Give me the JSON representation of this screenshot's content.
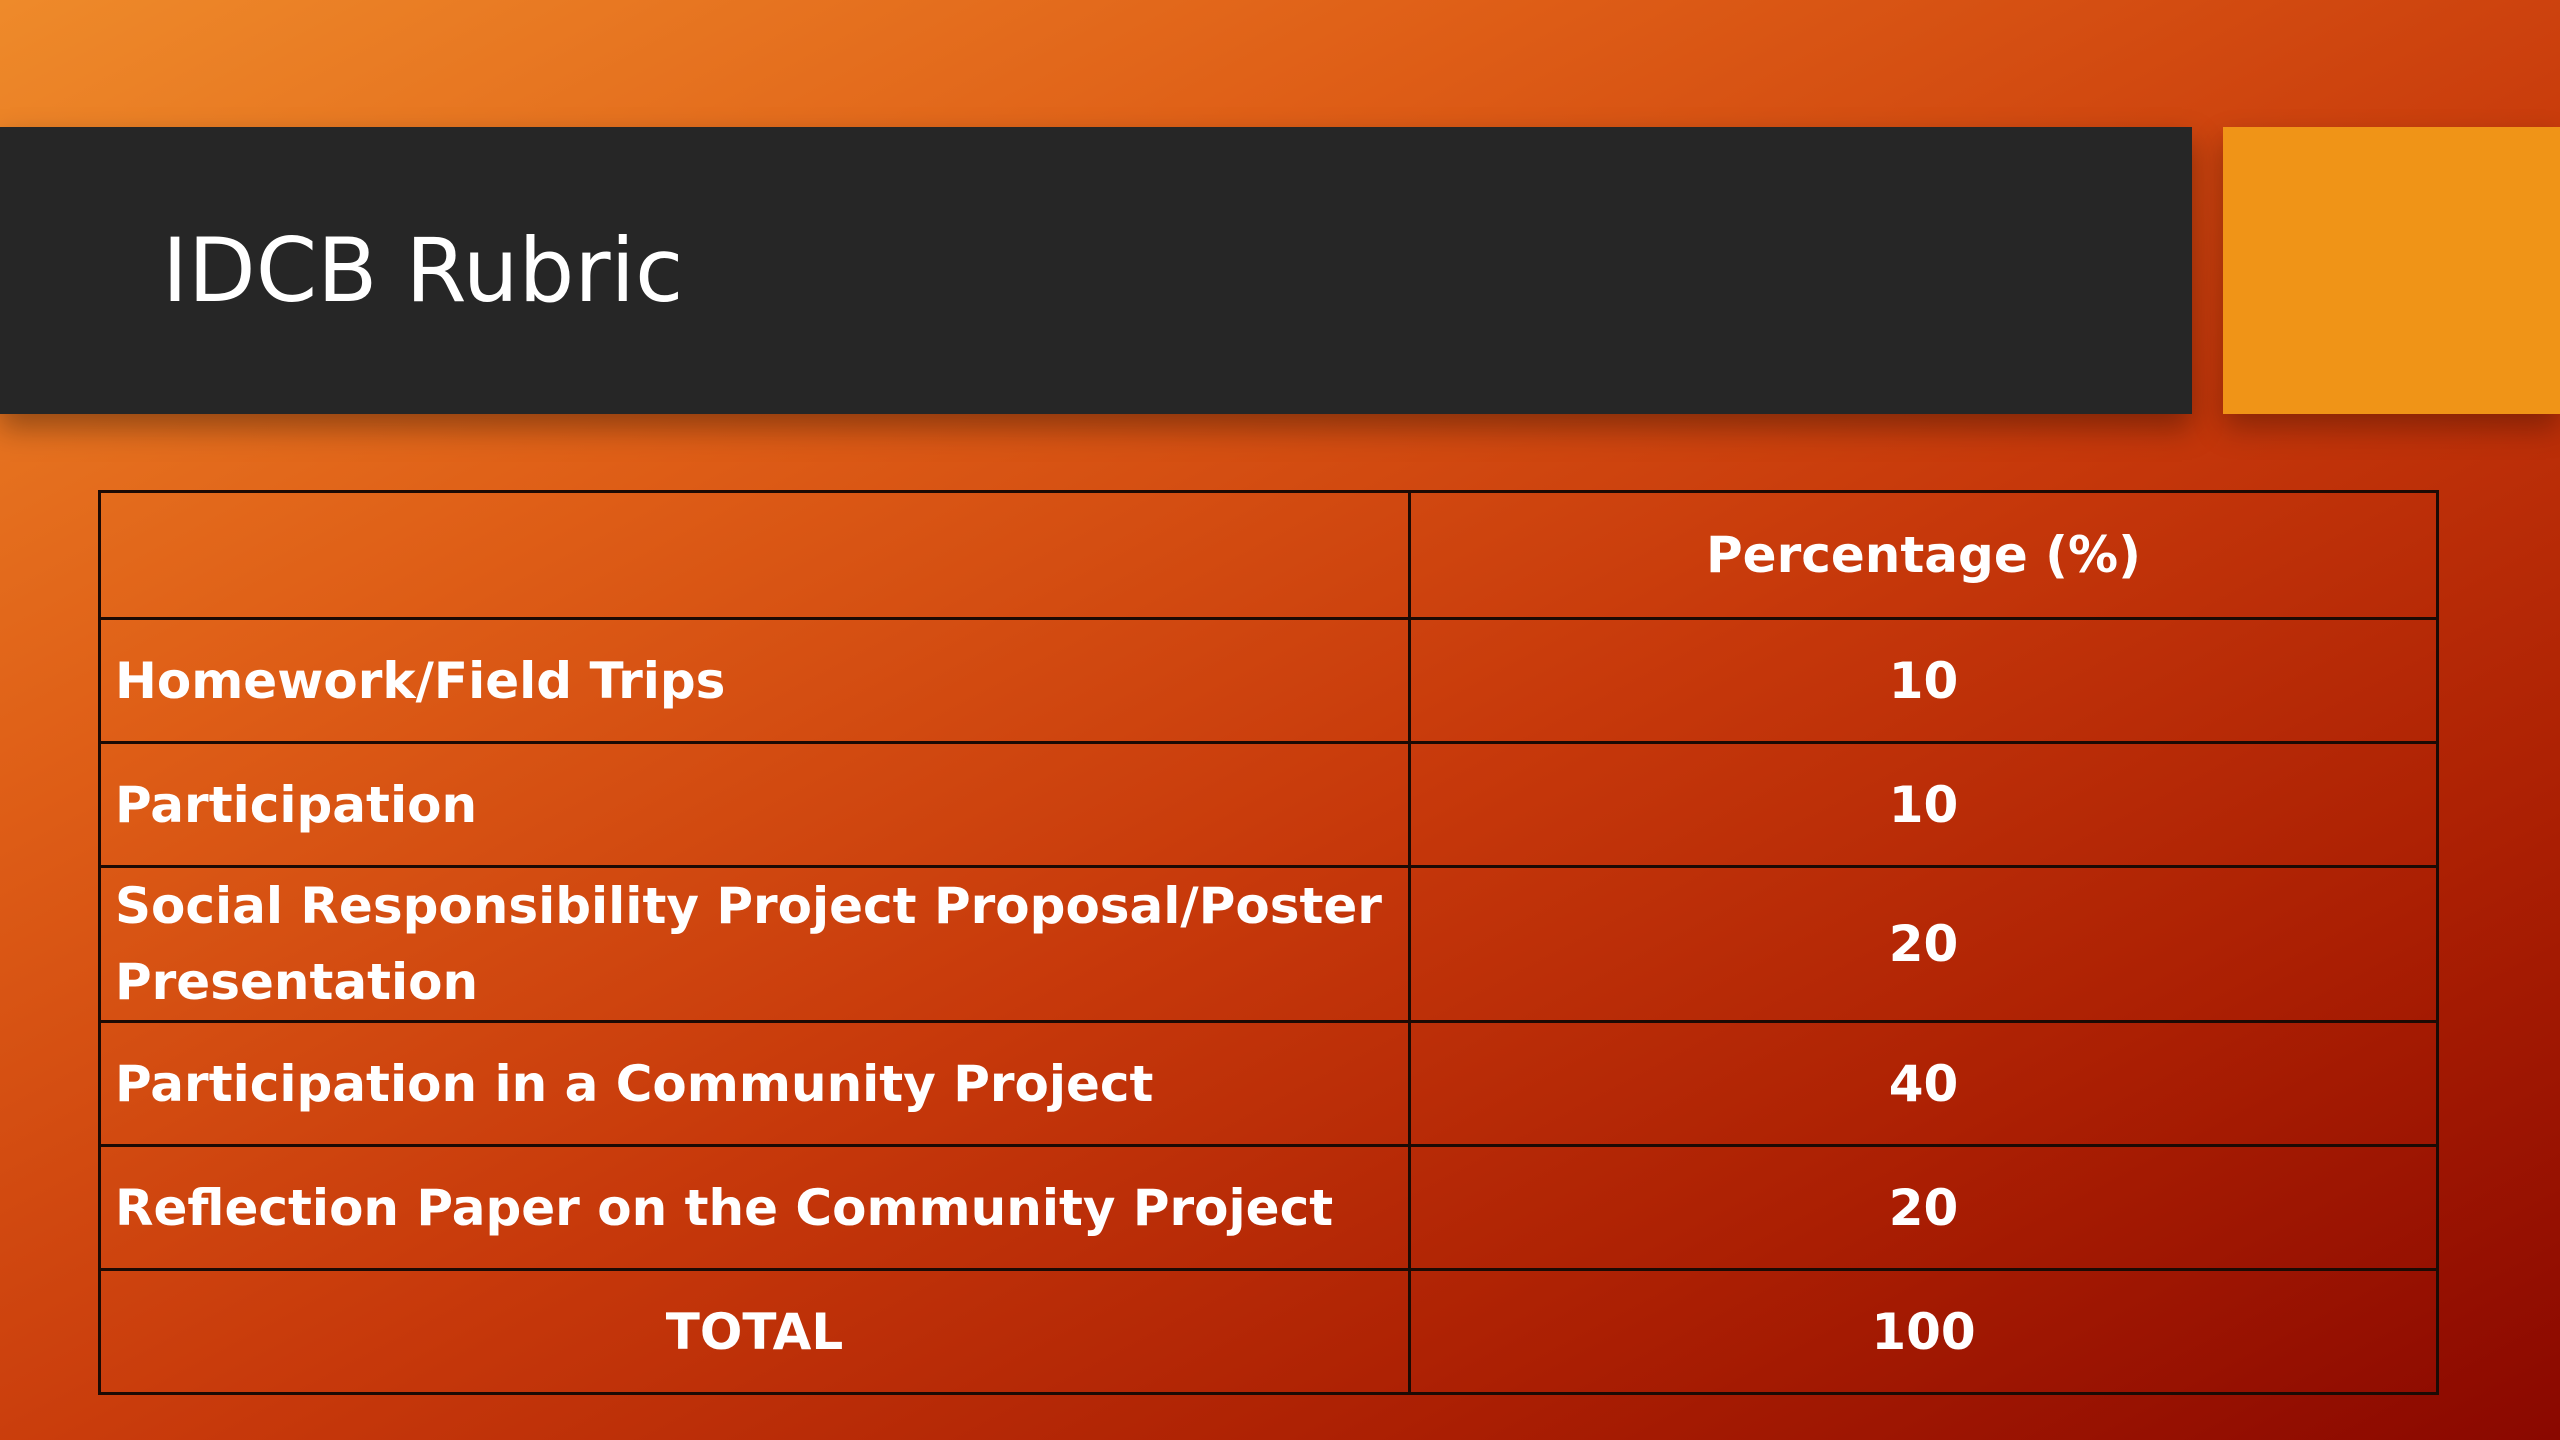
{
  "slide": {
    "title": "IDCB Rubric",
    "colors": {
      "title_bar": "#262626",
      "accent_square": "#f09417",
      "background_start": "#ee8a2a",
      "background_end": "#8a0800"
    }
  },
  "table": {
    "headers": [
      "",
      "Percentage (%)"
    ],
    "rows": [
      {
        "item": "Homework/Field Trips",
        "percentage": "10"
      },
      {
        "item": "Participation",
        "percentage": "10"
      },
      {
        "item": "Social Responsibility Project Proposal/Poster Presentation",
        "percentage": "20"
      },
      {
        "item": "Participation in a Community Project",
        "percentage": "40"
      },
      {
        "item": "Reflection Paper on the Community Project",
        "percentage": "20"
      }
    ],
    "total": {
      "label": "TOTAL",
      "percentage": "100"
    }
  }
}
